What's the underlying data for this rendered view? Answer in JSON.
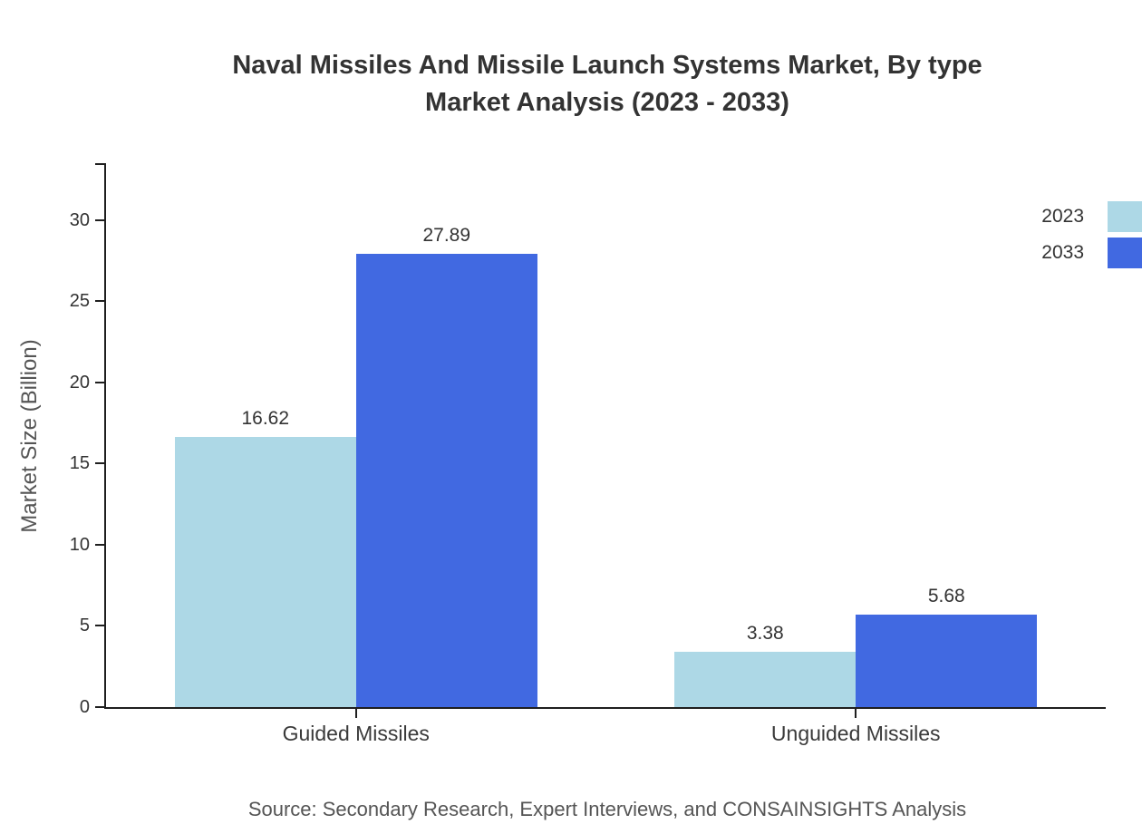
{
  "title": {
    "line1": "Naval Missiles And Missile Launch Systems Market, By type",
    "line2": "Market Analysis (2023 - 2033)"
  },
  "source": "Source: Secondary Research, Expert Interviews, and CONSAINSIGHTS Analysis",
  "colors": {
    "series_2023": "#ADD8E6",
    "series_2033": "#4169E1",
    "axis": "#1f1f1f",
    "tick_label": "#333333",
    "muted_text": "#555555"
  },
  "chart_data": {
    "type": "bar",
    "title": "Naval Missiles And Missile Launch Systems Market, By type Market Analysis (2023 - 2033)",
    "categories": [
      "Guided Missiles",
      "Unguided Missiles"
    ],
    "series": [
      {
        "name": "2023",
        "color": "#ADD8E6",
        "values": [
          16.62,
          3.38
        ]
      },
      {
        "name": "2033",
        "color": "#4169E1",
        "values": [
          27.89,
          5.68
        ]
      }
    ],
    "xlabel": "",
    "ylabel": "Market Size (Billion)",
    "ylim": [
      0,
      33.5
    ],
    "yticks": [
      0,
      5,
      10,
      15,
      20,
      25,
      30
    ],
    "grid": false,
    "legend_position": "top-right",
    "value_label_format": "2-decimals"
  }
}
